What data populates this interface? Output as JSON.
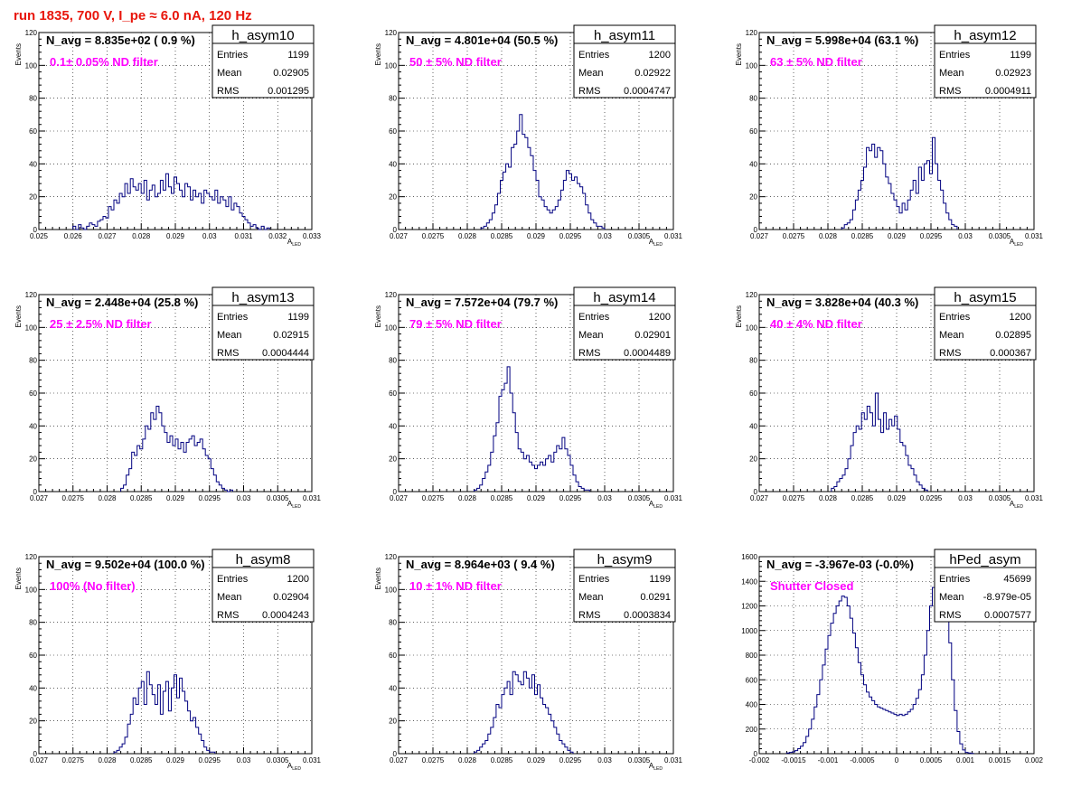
{
  "page_title": "run 1835,   700 V, I_pe ≈ 6.0 nA, 120 Hz",
  "colors": {
    "title": "#e8160c",
    "annotation": "#ff00ff",
    "histogram": "#000080"
  },
  "chart_data": [
    {
      "type": "histogram",
      "name": "h_asym10",
      "stats": {
        "entries_label": "Entries",
        "entries": "1199",
        "mean_label": "Mean",
        "mean": "0.02905",
        "rms_label": "RMS",
        "rms": "0.001295"
      },
      "navg": "N_avg = 8.835e+02 ( 0.9 %)",
      "annotation": "0.1± 0.05% ND filter",
      "xlabel": "A",
      "xlabel_sub": "LED",
      "ylabel": "Events",
      "xlim": [
        0.025,
        0.033
      ],
      "ylim": [
        0,
        120
      ],
      "xticks": [
        "0.025",
        "0.026",
        "0.027",
        "0.028",
        "0.029",
        "0.03",
        "0.031",
        "0.032",
        "0.033"
      ],
      "yticks": [
        "0",
        "20",
        "40",
        "60",
        "80",
        "100",
        "120"
      ],
      "bins": {
        "start": 0.026,
        "width": 8e-05,
        "counts": [
          2,
          0,
          3,
          1,
          0,
          2,
          4,
          3,
          2,
          5,
          6,
          8,
          7,
          14,
          12,
          18,
          16,
          22,
          20,
          28,
          22,
          31,
          26,
          24,
          28,
          22,
          30,
          18,
          24,
          27,
          20,
          22,
          30,
          24,
          34,
          26,
          22,
          32,
          28,
          24,
          20,
          28,
          26,
          18,
          24,
          20,
          22,
          16,
          24,
          22,
          20,
          18,
          24,
          16,
          20,
          18,
          14,
          20,
          12,
          16,
          14,
          10,
          8,
          6,
          4,
          2,
          3,
          1,
          0,
          2,
          0,
          1
        ]
      }
    },
    {
      "type": "histogram",
      "name": "h_asym11",
      "stats": {
        "entries_label": "Entries",
        "entries": "1200",
        "mean_label": "Mean",
        "mean": "0.02922",
        "rms_label": "RMS",
        "rms": "0.0004747"
      },
      "navg": "N_avg = 4.801e+04 (50.5 %)",
      "annotation": "50 ± 5% ND filter",
      "xlabel": "A",
      "xlabel_sub": "LED",
      "ylabel": "Events",
      "xlim": [
        0.027,
        0.031
      ],
      "ylim": [
        0,
        120
      ],
      "xticks": [
        "0.027",
        "0.0275",
        "0.028",
        "0.0285",
        "0.029",
        "0.0295",
        "0.03",
        "0.0305",
        "0.031"
      ],
      "yticks": [
        "0",
        "20",
        "40",
        "60",
        "80",
        "100",
        "120"
      ],
      "bins": {
        "start": 0.0282,
        "width": 4e-05,
        "counts": [
          1,
          2,
          4,
          6,
          10,
          15,
          22,
          30,
          35,
          40,
          38,
          50,
          52,
          60,
          70,
          58,
          56,
          50,
          45,
          36,
          30,
          20,
          18,
          14,
          12,
          10,
          12,
          14,
          18,
          24,
          30,
          36,
          34,
          30,
          32,
          28,
          26,
          22,
          15,
          10,
          6,
          4,
          2,
          2,
          1
        ]
      }
    },
    {
      "type": "histogram",
      "name": "h_asym12",
      "stats": {
        "entries_label": "Entries",
        "entries": "1199",
        "mean_label": "Mean",
        "mean": "0.02923",
        "rms_label": "RMS",
        "rms": "0.0004911"
      },
      "navg": "N_avg = 5.998e+04 (63.1 %)",
      "annotation": "63 ± 5% ND filter",
      "xlabel": "A",
      "xlabel_sub": "LED",
      "ylabel": "Events",
      "xlim": [
        0.027,
        0.031
      ],
      "ylim": [
        0,
        120
      ],
      "xticks": [
        "0.027",
        "0.0275",
        "0.028",
        "0.0285",
        "0.029",
        "0.0295",
        "0.03",
        "0.0305",
        "0.031"
      ],
      "yticks": [
        "0",
        "20",
        "40",
        "60",
        "80",
        "100",
        "120"
      ],
      "bins": {
        "start": 0.0282,
        "width": 4e-05,
        "counts": [
          1,
          3,
          4,
          6,
          12,
          18,
          24,
          30,
          38,
          50,
          48,
          52,
          44,
          50,
          48,
          40,
          32,
          28,
          22,
          18,
          14,
          10,
          16,
          12,
          18,
          24,
          30,
          22,
          38,
          30,
          40,
          42,
          34,
          56,
          40,
          30,
          24,
          16,
          10,
          6,
          3,
          2
        ]
      }
    },
    {
      "type": "histogram",
      "name": "h_asym13",
      "stats": {
        "entries_label": "Entries",
        "entries": "1199",
        "mean_label": "Mean",
        "mean": "0.02915",
        "rms_label": "RMS",
        "rms": "0.0004444"
      },
      "navg": "N_avg = 2.448e+04 (25.8 %)",
      "annotation": "25 ± 2.5% ND filter",
      "xlabel": "A",
      "xlabel_sub": "LED",
      "ylabel": "Events",
      "xlim": [
        0.027,
        0.031
      ],
      "ylim": [
        0,
        120
      ],
      "xticks": [
        "0.027",
        "0.0275",
        "0.028",
        "0.0285",
        "0.029",
        "0.0295",
        "0.03",
        "0.0305",
        "0.031"
      ],
      "yticks": [
        "0",
        "20",
        "40",
        "60",
        "80",
        "100",
        "120"
      ],
      "bins": {
        "start": 0.0282,
        "width": 4e-05,
        "counts": [
          2,
          4,
          10,
          14,
          24,
          22,
          28,
          26,
          32,
          40,
          38,
          48,
          44,
          52,
          48,
          40,
          36,
          30,
          34,
          28,
          32,
          26,
          30,
          24,
          30,
          32,
          34,
          28,
          30,
          32,
          26,
          22,
          20,
          14,
          10,
          6,
          4,
          2,
          1,
          0,
          1
        ]
      }
    },
    {
      "type": "histogram",
      "name": "h_asym14",
      "stats": {
        "entries_label": "Entries",
        "entries": "1200",
        "mean_label": "Mean",
        "mean": "0.02901",
        "rms_label": "RMS",
        "rms": "0.0004489"
      },
      "navg": "N_avg = 7.572e+04 (79.7 %)",
      "annotation": "79 ± 5% ND filter",
      "xlabel": "A",
      "xlabel_sub": "LED",
      "ylabel": "Events",
      "xlim": [
        0.027,
        0.031
      ],
      "ylim": [
        0,
        120
      ],
      "xticks": [
        "0.027",
        "0.0275",
        "0.028",
        "0.0285",
        "0.029",
        "0.0295",
        "0.03",
        "0.0305",
        "0.031"
      ],
      "yticks": [
        "0",
        "20",
        "40",
        "60",
        "80",
        "100",
        "120"
      ],
      "bins": {
        "start": 0.0281,
        "width": 4e-05,
        "counts": [
          1,
          2,
          4,
          8,
          12,
          16,
          24,
          34,
          42,
          58,
          62,
          66,
          76,
          60,
          48,
          36,
          26,
          24,
          20,
          22,
          18,
          16,
          14,
          16,
          18,
          16,
          20,
          22,
          18,
          24,
          28,
          26,
          33,
          26,
          22,
          16,
          10,
          6,
          3,
          2,
          1,
          1
        ]
      }
    },
    {
      "type": "histogram",
      "name": "h_asym15",
      "stats": {
        "entries_label": "Entries",
        "entries": "1200",
        "mean_label": "Mean",
        "mean": "0.02895",
        "rms_label": "RMS",
        "rms": "0.000367"
      },
      "navg": "N_avg = 3.828e+04 (40.3 %)",
      "annotation": "40 ± 4% ND filter",
      "xlabel": "A",
      "xlabel_sub": "LED",
      "ylabel": "Events",
      "xlim": [
        0.027,
        0.031
      ],
      "ylim": [
        0,
        120
      ],
      "xticks": [
        "0.027",
        "0.0275",
        "0.028",
        "0.0285",
        "0.029",
        "0.0295",
        "0.03",
        "0.0305",
        "0.031"
      ],
      "yticks": [
        "0",
        "20",
        "40",
        "60",
        "80",
        "100",
        "120"
      ],
      "bins": {
        "start": 0.02805,
        "width": 4e-05,
        "counts": [
          2,
          3,
          6,
          8,
          10,
          14,
          20,
          28,
          36,
          40,
          38,
          48,
          44,
          52,
          48,
          40,
          60,
          44,
          36,
          48,
          38,
          44,
          40,
          46,
          38,
          30,
          28,
          22,
          16,
          14,
          10,
          6,
          4,
          2,
          1
        ]
      }
    },
    {
      "type": "histogram",
      "name": "h_asym8",
      "stats": {
        "entries_label": "Entries",
        "entries": "1200",
        "mean_label": "Mean",
        "mean": "0.02904",
        "rms_label": "RMS",
        "rms": "0.0004243"
      },
      "navg": "N_avg = 9.502e+04 (100.0 %)",
      "annotation": "100% (No filter)",
      "xlabel": "A",
      "xlabel_sub": "LED",
      "ylabel": "Events",
      "xlim": [
        0.027,
        0.031
      ],
      "ylim": [
        0,
        120
      ],
      "xticks": [
        "0.027",
        "0.0275",
        "0.028",
        "0.0285",
        "0.029",
        "0.0295",
        "0.03",
        "0.0305",
        "0.031"
      ],
      "yticks": [
        "0",
        "20",
        "40",
        "60",
        "80",
        "100",
        "120"
      ],
      "bins": {
        "start": 0.0281,
        "width": 4e-05,
        "counts": [
          1,
          2,
          4,
          6,
          10,
          18,
          24,
          34,
          30,
          40,
          44,
          30,
          50,
          42,
          36,
          30,
          42,
          24,
          38,
          44,
          26,
          40,
          48,
          34,
          46,
          38,
          32,
          26,
          20,
          22,
          16,
          12,
          8,
          4,
          2,
          1,
          1
        ]
      }
    },
    {
      "type": "histogram",
      "name": "h_asym9",
      "stats": {
        "entries_label": "Entries",
        "entries": "1199",
        "mean_label": "Mean",
        "mean": "0.0291",
        "rms_label": "RMS",
        "rms": "0.0003834"
      },
      "navg": "N_avg = 8.964e+03 ( 9.4 %)",
      "annotation": "10 ± 1% ND filter",
      "xlabel": "A",
      "xlabel_sub": "LED",
      "ylabel": "Events",
      "xlim": [
        0.027,
        0.031
      ],
      "ylim": [
        0,
        120
      ],
      "xticks": [
        "0.027",
        "0.0275",
        "0.028",
        "0.0285",
        "0.029",
        "0.0295",
        "0.03",
        "0.0305",
        "0.031"
      ],
      "yticks": [
        "0",
        "20",
        "40",
        "60",
        "80",
        "100",
        "120"
      ],
      "bins": {
        "start": 0.0281,
        "width": 4e-05,
        "counts": [
          1,
          2,
          4,
          6,
          8,
          12,
          16,
          22,
          30,
          28,
          36,
          40,
          44,
          36,
          50,
          48,
          44,
          42,
          50,
          46,
          40,
          48,
          36,
          42,
          34,
          30,
          28,
          24,
          20,
          16,
          12,
          8,
          6,
          4,
          2,
          1
        ]
      }
    },
    {
      "type": "histogram",
      "name": "hPed_asym",
      "stats": {
        "entries_label": "Entries",
        "entries": "45699",
        "mean_label": "Mean",
        "mean": "-8.979e-05",
        "rms_label": "RMS",
        "rms": "0.0007577"
      },
      "navg": "N_avg = -3.967e-03 (-0.0%)",
      "annotation": "Shutter Closed",
      "xlabel": "",
      "xlabel_sub": "",
      "ylabel": "",
      "xlim": [
        -0.002,
        0.002
      ],
      "ylim": [
        0,
        1600
      ],
      "xticks": [
        "-0.002",
        "-0.0015",
        "-0.001",
        "-0.0005",
        "0",
        "0.0005",
        "0.001",
        "0.0015",
        "0.002"
      ],
      "yticks": [
        "0",
        "200",
        "400",
        "600",
        "800",
        "1000",
        "1200",
        "1400",
        "1600"
      ],
      "bins": {
        "start": -0.0016,
        "width": 4e-05,
        "counts": [
          5,
          10,
          15,
          25,
          40,
          60,
          90,
          140,
          200,
          280,
          380,
          480,
          600,
          720,
          850,
          960,
          1060,
          1140,
          1200,
          1240,
          1280,
          1270,
          1200,
          1100,
          980,
          860,
          740,
          640,
          560,
          500,
          460,
          430,
          400,
          380,
          370,
          360,
          350,
          340,
          330,
          320,
          310,
          320,
          310,
          320,
          340,
          360,
          400,
          450,
          520,
          640,
          800,
          1000,
          1200,
          1350,
          1450,
          1550,
          1500,
          1380,
          1200,
          900,
          600,
          350,
          180,
          80,
          30,
          10,
          5,
          2
        ]
      }
    }
  ]
}
